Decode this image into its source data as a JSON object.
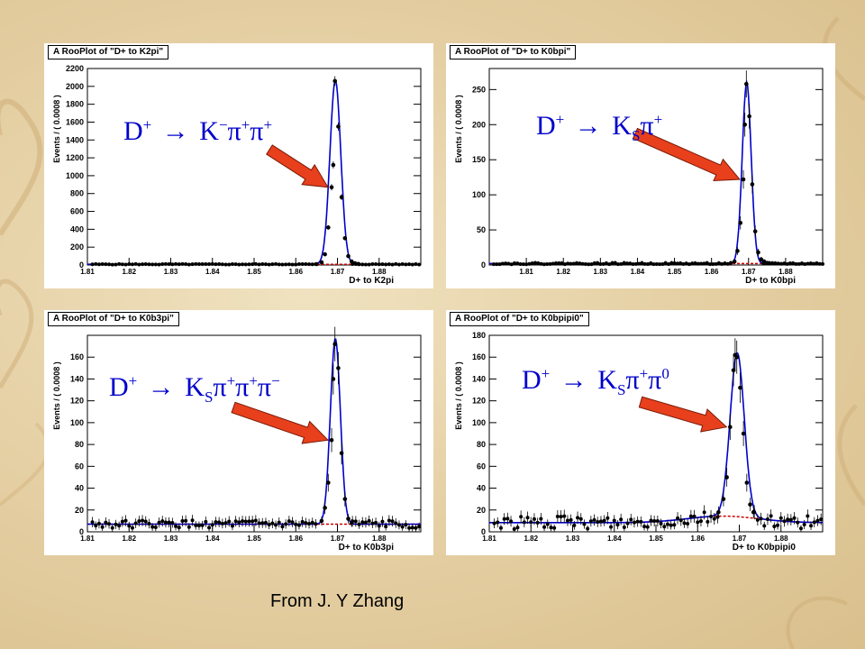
{
  "credit": "From J. Y Zhang",
  "colors": {
    "curve": "#0000cc",
    "background_fit": "#cc0000",
    "arrow": "#e8401c",
    "formula": "#0000cc"
  },
  "icons": [
    "red-arrow-icon"
  ],
  "chart_data": [
    {
      "type": "scatter",
      "title": "A RooPlot of \"D+ to K2pi\"",
      "ylabel": "Events / ( 0.0008 )",
      "xlabel": "D+ to K2pi",
      "formula": {
        "base": "D",
        "charge": "+",
        "arrow": "→",
        "products": [
          {
            "s": "K",
            "sub": "",
            "sup": "−"
          },
          {
            "s": "π",
            "sub": "",
            "sup": "+"
          },
          {
            "s": "π",
            "sub": "",
            "sup": "+"
          }
        ]
      },
      "xlim": [
        1.81,
        1.89
      ],
      "ylim": [
        0,
        2200
      ],
      "xticks": [
        "1.81",
        "1.82",
        "1.83",
        "1.84",
        "1.85",
        "1.86",
        "1.87",
        "1.88"
      ],
      "yticks": [
        0,
        200,
        400,
        600,
        800,
        1000,
        1200,
        1400,
        1600,
        1800,
        2000,
        2200
      ],
      "peak": {
        "mean": 1.8695,
        "sigma": 0.0013,
        "amplitude": 2060
      },
      "background_level": 8,
      "series": [
        {
          "name": "",
          "points": [
            [
              1.865,
              10
            ],
            [
              1.8662,
              30
            ],
            [
              1.867,
              120
            ],
            [
              1.8678,
              420
            ],
            [
              1.8686,
              870
            ],
            [
              1.869,
              1120
            ],
            [
              1.8694,
              2060
            ],
            [
              1.8702,
              1550
            ],
            [
              1.871,
              760
            ],
            [
              1.8718,
              300
            ],
            [
              1.8726,
              100
            ],
            [
              1.8734,
              40
            ],
            [
              1.8742,
              20
            ],
            [
              1.875,
              12
            ]
          ]
        }
      ],
      "grid": false,
      "arrow_target": [
        1.8686,
        870
      ]
    },
    {
      "type": "scatter",
      "title": "A RooPlot of \"D+ to K0bpi\"",
      "ylabel": "Events / ( 0.0008 )",
      "xlabel": "D+ to K0bpi",
      "formula": {
        "base": "D",
        "charge": "+",
        "arrow": "→",
        "products": [
          {
            "s": "K",
            "sub": "S",
            "sup": ""
          },
          {
            "s": "π",
            "sub": "",
            "sup": "+"
          }
        ]
      },
      "xlim": [
        1.8,
        1.89
      ],
      "ylim": [
        0,
        280
      ],
      "xticks": [
        "1.81",
        "1.82",
        "1.83",
        "1.84",
        "1.85",
        "1.86",
        "1.87",
        "1.88"
      ],
      "yticks": [
        0,
        50,
        100,
        150,
        200,
        250
      ],
      "peak": {
        "mean": 1.8695,
        "sigma": 0.0012,
        "amplitude": 258
      },
      "background_level": 2,
      "series": [
        {
          "name": "",
          "points": [
            [
              1.8662,
              5
            ],
            [
              1.867,
              20
            ],
            [
              1.8678,
              60
            ],
            [
              1.8686,
              122
            ],
            [
              1.869,
              200
            ],
            [
              1.8694,
              258
            ],
            [
              1.8702,
              212
            ],
            [
              1.871,
              115
            ],
            [
              1.8718,
              48
            ],
            [
              1.8726,
              18
            ],
            [
              1.8734,
              8
            ],
            [
              1.8742,
              5
            ],
            [
              1.875,
              3
            ]
          ]
        }
      ],
      "grid": false,
      "arrow_target": [
        1.8686,
        122
      ]
    },
    {
      "type": "scatter",
      "title": "A RooPlot of \"D+ to K0b3pi\"",
      "ylabel": "Events / ( 0.0008 )",
      "xlabel": "D+ to K0b3pi",
      "formula": {
        "base": "D",
        "charge": "+",
        "arrow": "→",
        "products": [
          {
            "s": "K",
            "sub": "S",
            "sup": ""
          },
          {
            "s": "π",
            "sub": "",
            "sup": "+"
          },
          {
            "s": "π",
            "sub": "",
            "sup": "+"
          },
          {
            "s": "π",
            "sub": "",
            "sup": "−"
          }
        ]
      },
      "xlim": [
        1.81,
        1.89
      ],
      "ylim": [
        0,
        180
      ],
      "xticks": [
        "1.81",
        "1.82",
        "1.83",
        "1.84",
        "1.85",
        "1.86",
        "1.87",
        "1.88"
      ],
      "yticks": [
        0,
        20,
        40,
        60,
        80,
        100,
        120,
        140,
        160
      ],
      "peak": {
        "mean": 1.8695,
        "sigma": 0.0012,
        "amplitude": 170
      },
      "background_level": 7,
      "series": [
        {
          "name": "",
          "points": [
            [
              1.8662,
              10
            ],
            [
              1.867,
              22
            ],
            [
              1.8678,
              45
            ],
            [
              1.8686,
              84
            ],
            [
              1.869,
              140
            ],
            [
              1.8694,
              172
            ],
            [
              1.8702,
              150
            ],
            [
              1.871,
              72
            ],
            [
              1.8718,
              30
            ],
            [
              1.8726,
              12
            ],
            [
              1.8734,
              8
            ]
          ]
        }
      ],
      "grid": false,
      "arrow_target": [
        1.8686,
        84
      ]
    },
    {
      "type": "scatter",
      "title": "A RooPlot of \"D+ to K0bpipi0\"",
      "ylabel": "Events / ( 0.0008 )",
      "xlabel": "D+ to K0bpipi0",
      "formula": {
        "base": "D",
        "charge": "+",
        "arrow": "→",
        "products": [
          {
            "s": "K",
            "sub": "S",
            "sup": ""
          },
          {
            "s": "π",
            "sub": "",
            "sup": "+"
          },
          {
            "s": "π",
            "sub": "",
            "sup": "0"
          }
        ]
      },
      "xlim": [
        1.81,
        1.89
      ],
      "ylim": [
        0,
        180
      ],
      "xticks": [
        "1.81",
        "1.82",
        "1.83",
        "1.84",
        "1.85",
        "1.86",
        "1.87",
        "1.88"
      ],
      "yticks": [
        0,
        20,
        40,
        60,
        80,
        100,
        120,
        140,
        160,
        180
      ],
      "peak": {
        "mean": 1.8695,
        "sigma": 0.0017,
        "amplitude": 150
      },
      "background_level": 12,
      "series": [
        {
          "name": "",
          "points": [
            [
              1.865,
              18
            ],
            [
              1.8662,
              30
            ],
            [
              1.867,
              50
            ],
            [
              1.8678,
              96
            ],
            [
              1.8686,
              148
            ],
            [
              1.869,
              162
            ],
            [
              1.8694,
              160
            ],
            [
              1.8702,
              132
            ],
            [
              1.871,
              90
            ],
            [
              1.8718,
              45
            ],
            [
              1.8726,
              25
            ],
            [
              1.8734,
              18
            ]
          ]
        }
      ],
      "grid": false,
      "arrow_target": [
        1.8678,
        96
      ]
    }
  ]
}
